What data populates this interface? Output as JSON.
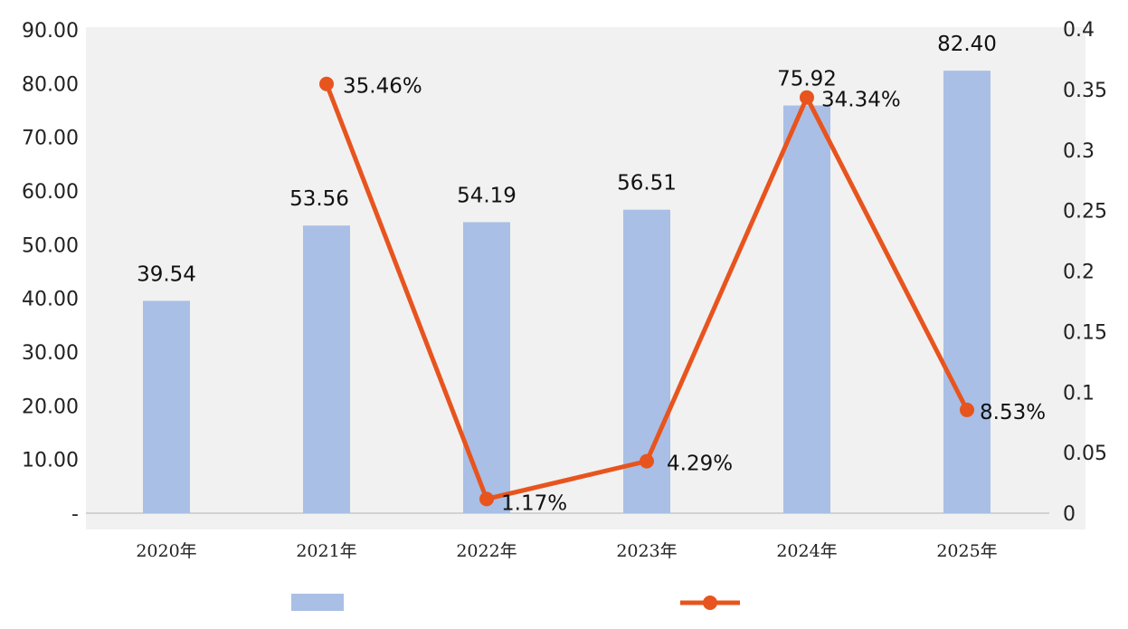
{
  "chart_data": {
    "type": "bar",
    "categories": [
      "2020年",
      "2021年",
      "2022年",
      "2023年",
      "2024年",
      "2025年"
    ],
    "series": [
      {
        "type": "bar",
        "axis": "left",
        "values": [
          39.54,
          53.56,
          54.19,
          56.51,
          75.92,
          82.4
        ],
        "labels": [
          "39.54",
          "53.56",
          "54.19",
          "56.51",
          "75.92",
          "82.40"
        ],
        "color": "#a9bfe6"
      },
      {
        "type": "line",
        "axis": "right",
        "values": [
          null,
          0.3546,
          0.0117,
          0.0429,
          0.3434,
          0.0853
        ],
        "labels": [
          "",
          "35.46%",
          "1.17%",
          "4.29%",
          "34.34%",
          "8.53%"
        ],
        "color": "#e8541e"
      }
    ],
    "y_left": {
      "ylim": [
        0,
        90
      ],
      "ticks": [
        0,
        10,
        20,
        30,
        40,
        50,
        60,
        70,
        80,
        90
      ],
      "tick_labels": [
        "-",
        "10.00",
        "20.00",
        "30.00",
        "40.00",
        "50.00",
        "60.00",
        "70.00",
        "80.00",
        "90.00"
      ]
    },
    "y_right": {
      "ylim": [
        0,
        0.4
      ],
      "ticks": [
        0,
        0.05,
        0.1,
        0.15,
        0.2,
        0.25,
        0.3,
        0.35,
        0.4
      ],
      "tick_labels": [
        "0",
        "0.05",
        "0.1",
        "0.15",
        "0.2",
        "0.25",
        "0.3",
        "0.35",
        "0.4"
      ]
    },
    "grid": false,
    "legend_position": "bottom",
    "plot_background": "#f1f1f1"
  }
}
